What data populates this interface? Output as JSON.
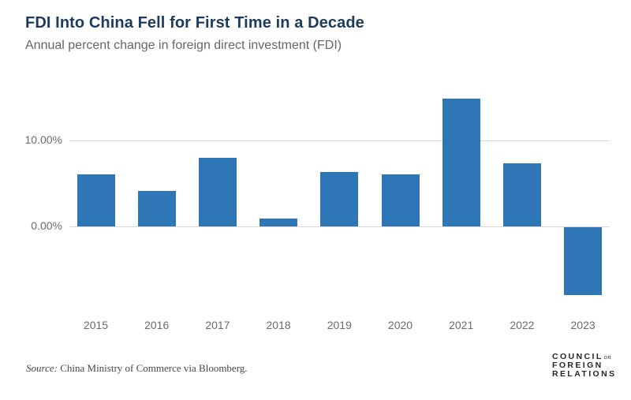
{
  "header": {
    "title": "FDI Into China Fell for First Time in a Decade",
    "subtitle": "Annual percent change in foreign direct investment (FDI)"
  },
  "chart_data": {
    "type": "bar",
    "title": "FDI Into China Fell for First Time in a Decade",
    "subtitle": "Annual percent change in foreign direct investment (FDI)",
    "categories": [
      "2015",
      "2016",
      "2017",
      "2018",
      "2019",
      "2020",
      "2021",
      "2022",
      "2023"
    ],
    "values": [
      6.1,
      4.1,
      8.0,
      0.9,
      6.3,
      6.1,
      14.9,
      7.3,
      -8.0
    ],
    "xlabel": "",
    "ylabel": "",
    "yticks": [
      {
        "value": 10,
        "label": "10.00%"
      },
      {
        "value": 0,
        "label": "0.00%"
      }
    ],
    "ylim": [
      -9.5,
      16.2
    ],
    "grid": "horizontal gridlines at labeled ticks only",
    "legend": "none",
    "bar_color": "#2e76b6"
  },
  "colors": {
    "bar": "#2e76b6",
    "title": "#1c3c5e",
    "gridline": "#d9d9d9",
    "tick_label": "#6b6b6b"
  },
  "footer": {
    "source_prefix": "Source:",
    "source_text": " China Ministry of Commerce via Bloomberg."
  },
  "logo": {
    "line1": "COUNCIL",
    "on": "on",
    "line2": "FOREIGN",
    "line3": "RELATIONS"
  }
}
